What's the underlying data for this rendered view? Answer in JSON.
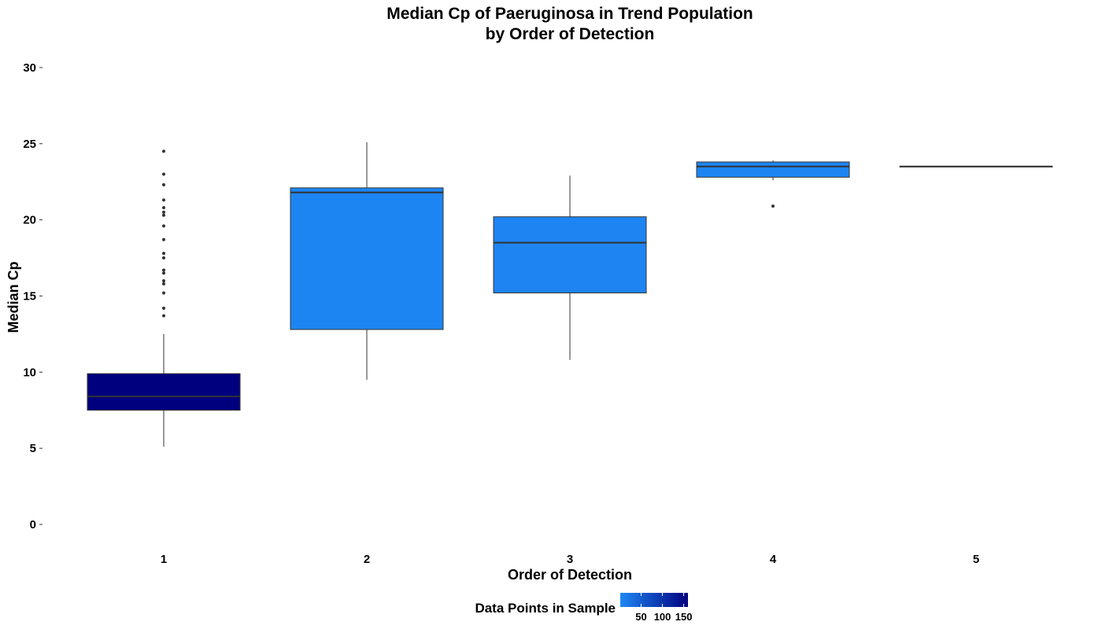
{
  "chart_data": {
    "type": "boxplot",
    "title_line1": "Median Cp of Paeruginosa in Trend Population",
    "title_line2": "by Order of Detection",
    "xlabel": "Order of Detection",
    "ylabel": "Median Cp",
    "categories": [
      "1",
      "2",
      "3",
      "4",
      "5"
    ],
    "ylim": [
      0,
      30
    ],
    "yticks": [
      0,
      5,
      10,
      15,
      20,
      25,
      30
    ],
    "grid": false,
    "legend": {
      "title": "Data Points in Sample",
      "position": "bottom",
      "ticks": [
        50,
        100,
        150
      ],
      "range": [
        1,
        160
      ],
      "color_low": "#1E88F5",
      "color_high": "#00007F"
    },
    "boxes": [
      {
        "category": "1",
        "whisker_low": 5.1,
        "q1": 7.5,
        "median": 8.4,
        "q3": 9.9,
        "whisker_high": 12.5,
        "n": 160,
        "outliers": [
          13.7,
          14.2,
          15.2,
          15.8,
          16.0,
          16.5,
          16.7,
          17.5,
          17.8,
          18.7,
          19.6,
          20.3,
          20.5,
          20.8,
          21.3,
          22.3,
          23.0,
          24.5
        ]
      },
      {
        "category": "2",
        "whisker_low": 9.5,
        "q1": 12.8,
        "median": 21.8,
        "q3": 22.1,
        "whisker_high": 25.1,
        "n": 5,
        "outliers": []
      },
      {
        "category": "3",
        "whisker_low": 10.8,
        "q1": 15.2,
        "median": 18.5,
        "q3": 20.2,
        "whisker_high": 22.9,
        "n": 6,
        "outliers": []
      },
      {
        "category": "4",
        "whisker_low": 22.6,
        "q1": 22.8,
        "median": 23.5,
        "q3": 23.8,
        "whisker_high": 23.9,
        "n": 4,
        "outliers": [
          20.9
        ]
      },
      {
        "category": "5",
        "whisker_low": 23.5,
        "q1": 23.5,
        "median": 23.5,
        "q3": 23.5,
        "whisker_high": 23.5,
        "n": 1,
        "outliers": []
      }
    ]
  }
}
